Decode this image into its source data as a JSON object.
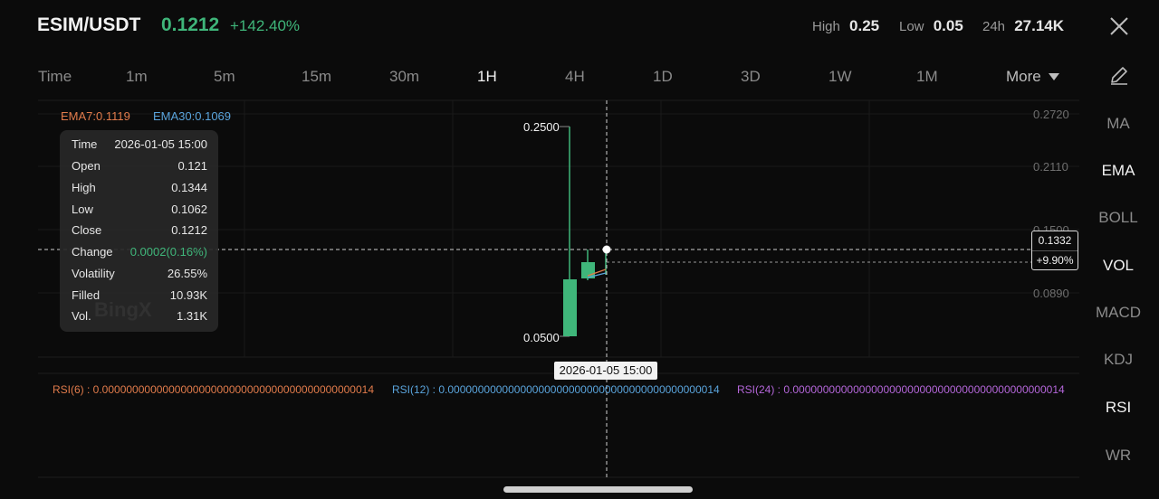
{
  "header": {
    "pair": "ESIM/USDT",
    "price": "0.1212",
    "change": "+142.40%",
    "high_label": "High",
    "high_value": "0.25",
    "low_label": "Low",
    "low_value": "0.05",
    "vol_label": "24h",
    "vol_value": "27.14K"
  },
  "timeframes": [
    "Time",
    "1m",
    "5m",
    "15m",
    "30m",
    "1H",
    "4H",
    "1D",
    "3D",
    "1W",
    "1M"
  ],
  "active_timeframe": "1H",
  "more_label": "More",
  "indicators": [
    "MA",
    "EMA",
    "BOLL",
    "VOL",
    "MACD",
    "KDJ",
    "RSI",
    "WR"
  ],
  "active_indicators": [
    "EMA",
    "VOL",
    "RSI"
  ],
  "ema": {
    "ema7": "EMA7:0.1119",
    "ema30": "EMA30:0.1069"
  },
  "tooltip": {
    "rows": [
      {
        "key": "Time",
        "value": "2026-01-05 15:00"
      },
      {
        "key": "Open",
        "value": "0.121"
      },
      {
        "key": "High",
        "value": "0.1344"
      },
      {
        "key": "Low",
        "value": "0.1062"
      },
      {
        "key": "Close",
        "value": "0.1212"
      },
      {
        "key": "Change",
        "value": "0.0002(0.16%)"
      },
      {
        "key": "Volatility",
        "value": "26.55%"
      },
      {
        "key": "Filled",
        "value": "10.93K"
      },
      {
        "key": "Vol.",
        "value": "1.31K"
      }
    ],
    "watermark": "BingX"
  },
  "y_axis": [
    "0.2720",
    "0.2110",
    "0.1500",
    "0.0890"
  ],
  "marks": {
    "high": "0.2500",
    "low": "0.0500"
  },
  "crosshair": {
    "price": "0.1332",
    "pct": "+9.90%",
    "date": "2026-01-05 15:00"
  },
  "rsi": {
    "rsi6": "RSI(6) : 0.000000000000000000000000000000000000000000014",
    "rsi12": "RSI(12) : 0.000000000000000000000000000000000000000000014",
    "rsi24": "RSI(24) : 0.000000000000000000000000000000000000000000014"
  },
  "colors": {
    "up": "#3fb67a",
    "ema7": "#e17b4b",
    "ema30": "#5aa4dc",
    "rsi24": "#b466d9",
    "background": "#0b0b0b"
  }
}
